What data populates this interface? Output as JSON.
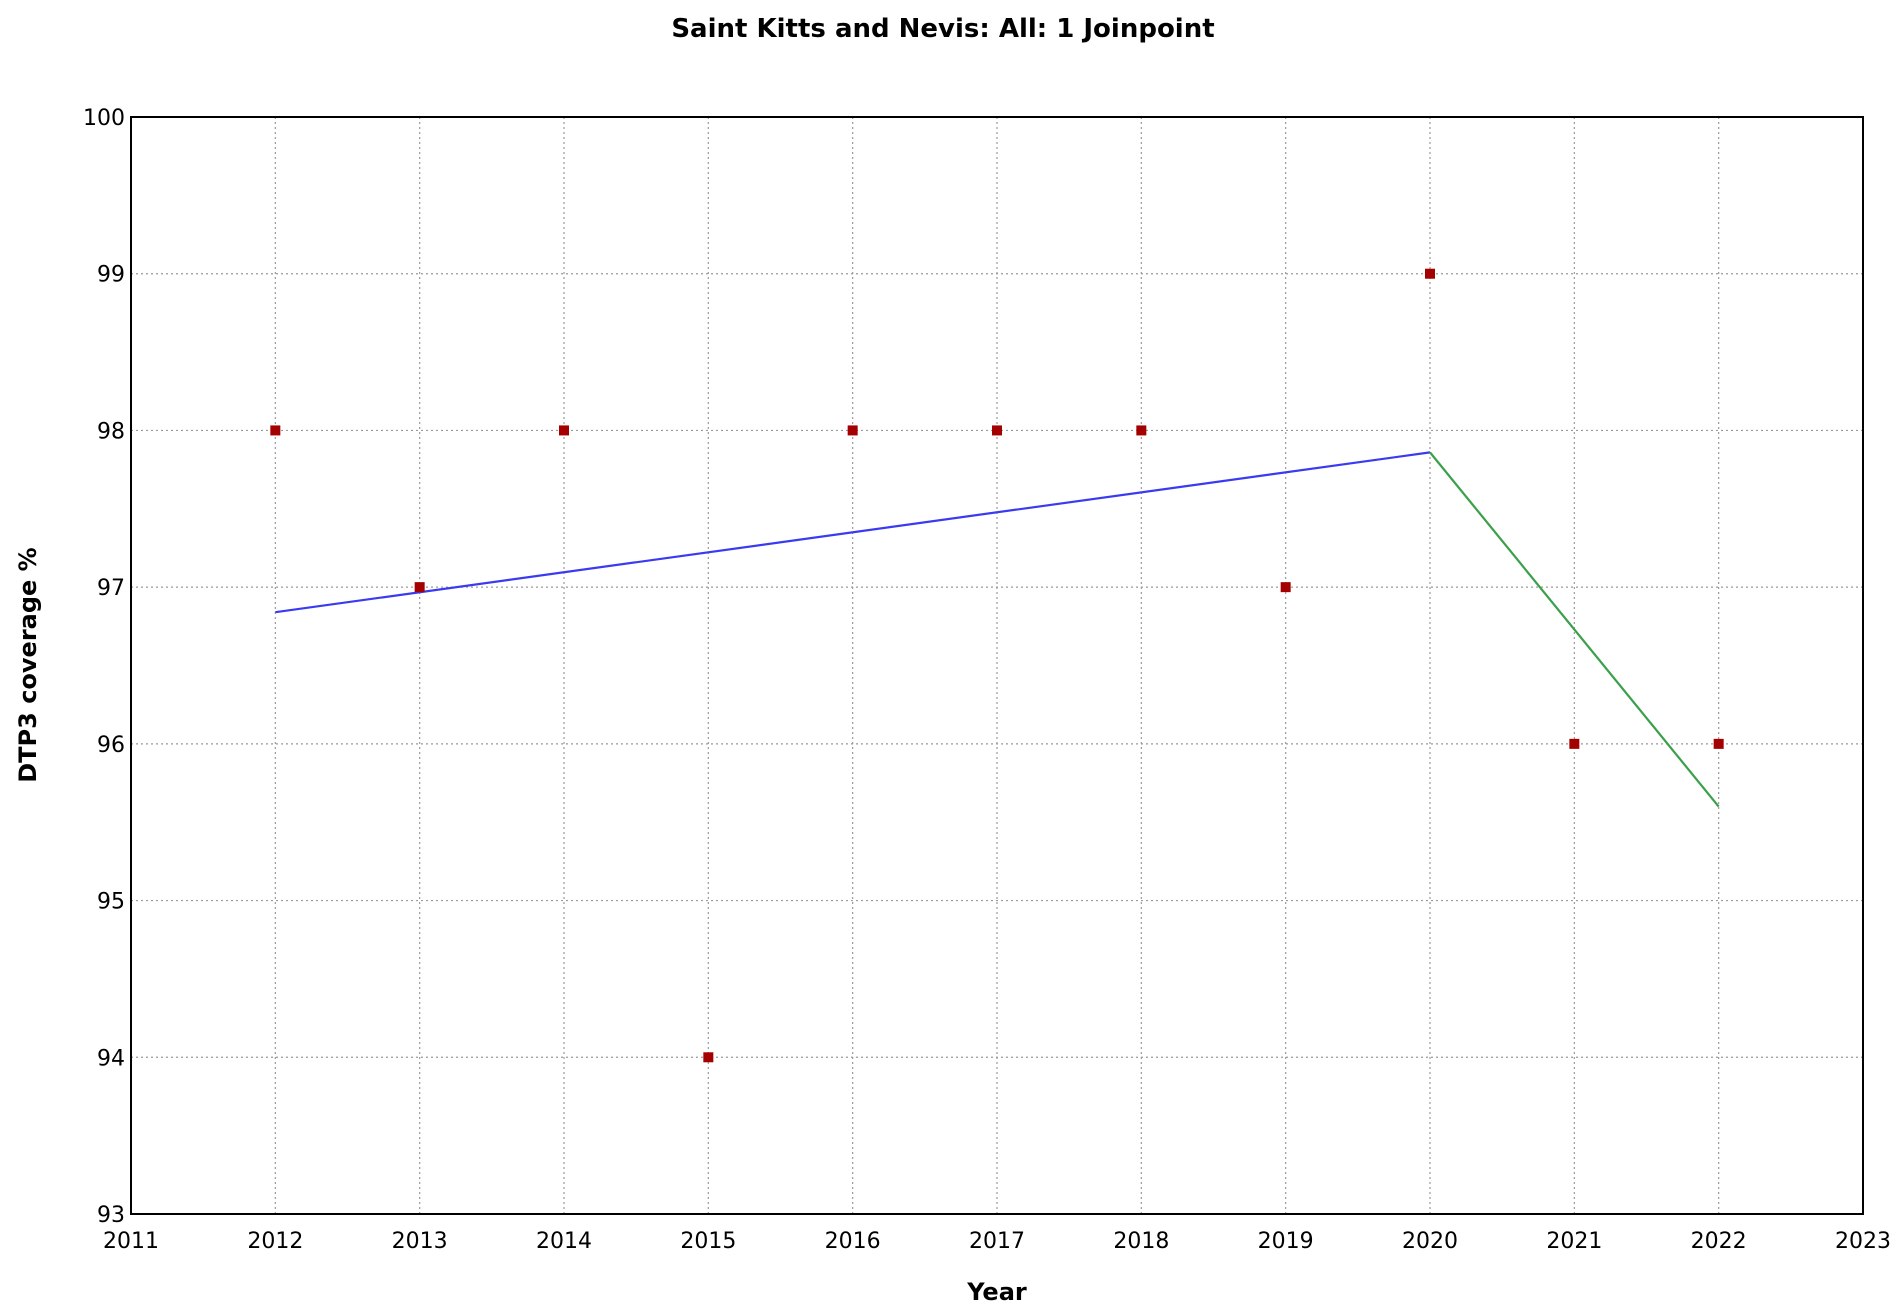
{
  "chart_data": {
    "type": "scatter",
    "title": "Saint Kitts and Nevis: All: 1 Joinpoint",
    "xlabel": "Year",
    "ylabel": "DTP3 coverage %",
    "xlim": [
      2011,
      2023
    ],
    "ylim": [
      93,
      100
    ],
    "x_ticks": [
      "2011",
      "2012",
      "2013",
      "2014",
      "2015",
      "2016",
      "2017",
      "2018",
      "2019",
      "2020",
      "2021",
      "2022",
      "2023"
    ],
    "y_ticks": [
      "93",
      "94",
      "95",
      "96",
      "97",
      "98",
      "99",
      "100"
    ],
    "grid": true,
    "observed": {
      "x": [
        2012,
        2013,
        2014,
        2015,
        2016,
        2017,
        2018,
        2019,
        2020,
        2021,
        2022
      ],
      "y": [
        98,
        97,
        98,
        94,
        98,
        98,
        98,
        97,
        99,
        96,
        96
      ],
      "color": "#a50000"
    },
    "segments": [
      {
        "x": [
          2012,
          2020
        ],
        "y": [
          96.84,
          97.86
        ],
        "color": "#3a3af0"
      },
      {
        "x": [
          2020,
          2022
        ],
        "y": [
          97.86,
          95.6
        ],
        "color": "#3aa04a"
      }
    ]
  }
}
